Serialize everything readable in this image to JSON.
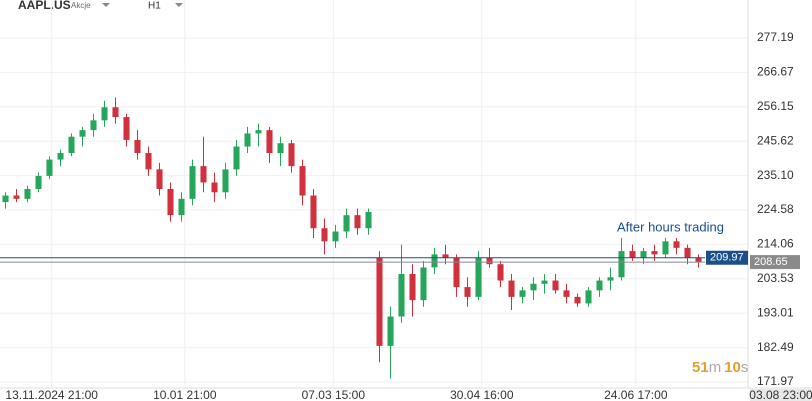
{
  "header": {
    "symbol": "AAPL.US",
    "asset_class": "Akcje",
    "interval": "H1"
  },
  "chart_data": {
    "type": "candlestick",
    "open": [
      227,
      229,
      228,
      231,
      235,
      240,
      242,
      247,
      249,
      252,
      256,
      253,
      246,
      242,
      237,
      231,
      223,
      228,
      238,
      233,
      230,
      237,
      244,
      248,
      249,
      242,
      245,
      238,
      229,
      219,
      215,
      218,
      223,
      219,
      210,
      183,
      192,
      205,
      197,
      207,
      211,
      210,
      201,
      198,
      210,
      208,
      203,
      198,
      200,
      202,
      203,
      200,
      198,
      196,
      200,
      203,
      204,
      212,
      210,
      212,
      211,
      215,
      213,
      210
    ],
    "high": [
      230,
      231,
      232,
      236,
      241,
      243,
      248,
      250,
      254,
      258,
      259,
      254,
      249,
      244,
      239,
      233,
      230,
      240,
      247,
      236,
      239,
      246,
      250,
      251,
      250,
      247,
      246,
      240,
      231,
      222,
      220,
      225,
      225,
      225,
      212,
      195,
      214,
      208,
      209,
      213,
      214,
      211,
      204,
      212,
      213,
      209,
      205,
      201,
      204,
      205,
      205,
      202,
      199,
      201,
      204,
      207,
      216,
      214,
      213,
      214,
      216,
      216,
      214,
      211
    ],
    "low": [
      225,
      227,
      227,
      230,
      234,
      238,
      241,
      244,
      247,
      250,
      251,
      244,
      240,
      235,
      229,
      221,
      221,
      226,
      230,
      227,
      228,
      235,
      242,
      244,
      239,
      238,
      236,
      226,
      216,
      211,
      213,
      216,
      217,
      217,
      178,
      173,
      190,
      192,
      195,
      205,
      208,
      198,
      195,
      197,
      207,
      201,
      194,
      196,
      197,
      199,
      199,
      196,
      195,
      195,
      198,
      200,
      203,
      209,
      208,
      209,
      210,
      211,
      208,
      207
    ],
    "close": [
      229,
      228,
      231,
      235,
      240,
      242,
      247,
      249,
      252,
      256,
      253,
      246,
      242,
      237,
      231,
      223,
      228,
      238,
      233,
      230,
      237,
      244,
      248,
      249,
      242,
      245,
      238,
      229,
      219,
      215,
      218,
      223,
      219,
      224,
      183,
      192,
      205,
      197,
      207,
      211,
      210,
      201,
      198,
      210,
      208,
      203,
      198,
      200,
      202,
      203,
      200,
      198,
      196,
      200,
      203,
      204,
      212,
      210,
      212,
      211,
      215,
      213,
      210,
      208.65
    ],
    "up_color": "#26a65b",
    "down_color": "#d0313d",
    "xlim": [
      -0.5,
      67.5
    ],
    "xticks": [
      {
        "value": 4.2,
        "label": "13.11.2024 21:00"
      },
      {
        "value": 16.3,
        "label": "10.01 21:00"
      },
      {
        "value": 29.8,
        "label": "07.03 15:00"
      },
      {
        "value": 43.3,
        "label": "30.04 16:00"
      },
      {
        "value": 57.3,
        "label": "24.06 17:00"
      }
    ],
    "current_time_label": "03.08 23:00",
    "ylim": [
      170.13,
      288.81
    ],
    "yticks": [
      277.19,
      266.67,
      256.15,
      245.62,
      {
        "value": 235.1,
        "label": "235.10"
      },
      224.58,
      214.06,
      203.53,
      193.01,
      182.49,
      171.97
    ],
    "grid": true,
    "price_lines": [
      {
        "value": 209.97,
        "color": "#1b4f8c"
      },
      {
        "value": 208.65,
        "color": "#8a8a8a"
      }
    ],
    "annotation": "After hours trading",
    "countdown": {
      "minutes": 51,
      "minute_unit": "m",
      "seconds": 10,
      "second_unit": "s"
    }
  }
}
